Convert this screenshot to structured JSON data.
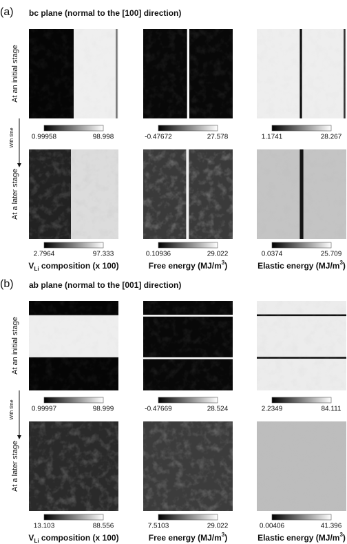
{
  "panels": [
    {
      "label": "(a)",
      "title": "bc plane (normal to the [100] direction)",
      "row_labels": [
        "At an initial stage",
        "At a later stage"
      ],
      "time_label": "With time",
      "colorbars": [
        [
          {
            "min": "0.99958",
            "max": "98.998"
          },
          {
            "min": "-0.47672",
            "max": "27.578"
          },
          {
            "min": "1.1741",
            "max": "28.267"
          }
        ],
        [
          {
            "min": "2.7964",
            "max": "97.333"
          },
          {
            "min": "0.10936",
            "max": "29.022"
          },
          {
            "min": "0.0374",
            "max": "25.709"
          }
        ]
      ],
      "column_labels": [
        [
          "V",
          "Li",
          " composition (x 100)"
        ],
        [
          "Free energy (MJ/m",
          "3",
          ")"
        ],
        [
          "Elastic energy (MJ/m",
          "3",
          ")"
        ]
      ]
    },
    {
      "label": "(b)",
      "title": "ab plane (normal to the [001] direction)",
      "row_labels": [
        "At an initial stage",
        "At a later stage"
      ],
      "time_label": "With time",
      "colorbars": [
        [
          {
            "min": "0.99997",
            "max": "98.999"
          },
          {
            "min": "-0.47669",
            "max": "28.524"
          },
          {
            "min": "2.2349",
            "max": "84.111"
          }
        ],
        [
          {
            "min": "13.103",
            "max": "88.556"
          },
          {
            "min": "7.5103",
            "max": "29.022"
          },
          {
            "min": "0.00406",
            "max": "41.396"
          }
        ]
      ],
      "column_labels": [
        [
          "V",
          "Li",
          " composition (x 100)"
        ],
        [
          "Free energy (MJ/m",
          "3",
          ")"
        ],
        [
          "Elastic energy (MJ/m",
          "3",
          ")"
        ]
      ]
    }
  ]
}
